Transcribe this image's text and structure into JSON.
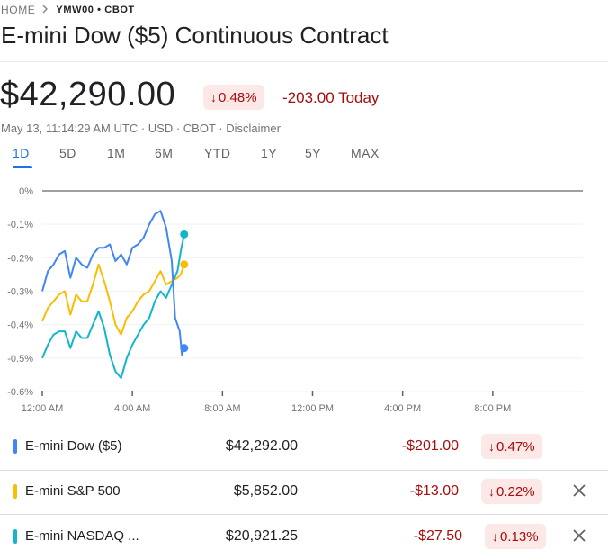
{
  "breadcrumb": {
    "home": "HOME",
    "ticker": "YMW00 • CBOT"
  },
  "instrument": {
    "title": "E-mini Dow ($5) Continuous Contract",
    "price": "$42,290.00",
    "change_pct": "0.48%",
    "change_today": "-203.00 Today",
    "timestamp": "May 13, 11:14:29 AM UTC",
    "currency": "USD",
    "exchange": "CBOT",
    "disclaimer": "Disclaimer"
  },
  "ranges": [
    "1D",
    "5D",
    "1M",
    "6M",
    "YTD",
    "1Y",
    "5Y",
    "MAX"
  ],
  "active_range": "1D",
  "chart_data": {
    "type": "line",
    "title": "",
    "xlabel": "",
    "ylabel": "",
    "x_ticks": [
      "12:00 AM",
      "4:00 AM",
      "8:00 AM",
      "12:00 PM",
      "4:00 PM",
      "8:00 PM"
    ],
    "y_ticks": [
      "0%",
      "-0.1%",
      "-0.2%",
      "-0.3%",
      "-0.4%",
      "-0.5%",
      "-0.6%"
    ],
    "ylim": [
      -0.6,
      0
    ],
    "xlim_hours": [
      0,
      24
    ],
    "series": [
      {
        "name": "E-mini Dow ($5)",
        "color": "#4285f4",
        "x_hours": [
          0,
          0.25,
          0.5,
          0.75,
          1.0,
          1.25,
          1.5,
          1.75,
          2.0,
          2.25,
          2.5,
          2.75,
          3.0,
          3.25,
          3.5,
          3.75,
          4.0,
          4.25,
          4.5,
          4.75,
          5.0,
          5.25,
          5.5,
          5.75,
          5.9,
          6.1,
          6.2,
          6.3
        ],
        "values": [
          -0.3,
          -0.24,
          -0.22,
          -0.19,
          -0.18,
          -0.26,
          -0.2,
          -0.22,
          -0.23,
          -0.19,
          -0.17,
          -0.17,
          -0.16,
          -0.21,
          -0.19,
          -0.22,
          -0.17,
          -0.16,
          -0.14,
          -0.1,
          -0.07,
          -0.06,
          -0.11,
          -0.21,
          -0.38,
          -0.42,
          -0.49,
          -0.47
        ]
      },
      {
        "name": "E-mini S&P 500",
        "color": "#fbbc04",
        "x_hours": [
          0,
          0.25,
          0.5,
          0.75,
          1.0,
          1.25,
          1.5,
          1.75,
          2.0,
          2.25,
          2.5,
          2.75,
          3.0,
          3.25,
          3.5,
          3.75,
          4.0,
          4.25,
          4.5,
          4.75,
          5.0,
          5.25,
          5.5,
          5.75,
          6.0,
          6.15,
          6.3
        ],
        "values": [
          -0.39,
          -0.35,
          -0.33,
          -0.31,
          -0.3,
          -0.37,
          -0.31,
          -0.33,
          -0.33,
          -0.28,
          -0.22,
          -0.27,
          -0.33,
          -0.4,
          -0.43,
          -0.38,
          -0.36,
          -0.33,
          -0.31,
          -0.3,
          -0.27,
          -0.24,
          -0.28,
          -0.27,
          -0.26,
          -0.25,
          -0.22
        ]
      },
      {
        "name": "E-mini NASDAQ ...",
        "color": "#12b5cb",
        "x_hours": [
          0,
          0.25,
          0.5,
          0.75,
          1.0,
          1.25,
          1.5,
          1.75,
          2.0,
          2.25,
          2.5,
          2.75,
          3.0,
          3.25,
          3.5,
          3.75,
          4.0,
          4.25,
          4.5,
          4.75,
          5.0,
          5.25,
          5.5,
          5.75,
          6.0,
          6.15,
          6.3
        ],
        "values": [
          -0.5,
          -0.46,
          -0.43,
          -0.42,
          -0.42,
          -0.47,
          -0.42,
          -0.44,
          -0.44,
          -0.4,
          -0.36,
          -0.41,
          -0.49,
          -0.54,
          -0.56,
          -0.5,
          -0.46,
          -0.43,
          -0.4,
          -0.38,
          -0.33,
          -0.3,
          -0.32,
          -0.28,
          -0.24,
          -0.18,
          -0.13
        ]
      }
    ]
  },
  "comparison": [
    {
      "name": "E-mini Dow ($5)",
      "color": "#4285f4",
      "value": "$42,292.00",
      "change": "-$201.00",
      "pct": "0.47%",
      "removable": false
    },
    {
      "name": "E-mini S&P 500",
      "color": "#fbbc04",
      "value": "$5,852.00",
      "change": "-$13.00",
      "pct": "0.22%",
      "removable": true
    },
    {
      "name": "E-mini NASDAQ ...",
      "color": "#12b5cb",
      "value": "$20,921.25",
      "change": "-$27.50",
      "pct": "0.13%",
      "removable": true
    }
  ],
  "icons": {
    "breadcrumb_separator": "chevron-right-icon",
    "change_arrow": "arrow-down-icon",
    "remove": "close-icon"
  }
}
